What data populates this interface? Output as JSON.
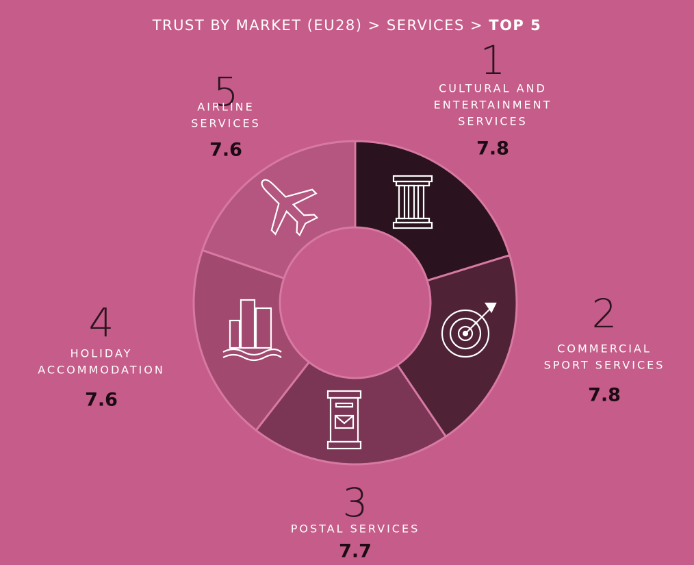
{
  "chart_data": {
    "type": "donut",
    "title": "TRUST BY MARKET (EU28) > SERVICES >",
    "title_emphasis": "TOP 5",
    "ranks": [
      1,
      2,
      3,
      4,
      5
    ],
    "categories": [
      [
        "CULTURAL AND",
        "ENTERTAINMENT",
        "SERVICES"
      ],
      [
        "COMMERCIAL",
        "SPORT SERVICES"
      ],
      [
        "POSTAL SERVICES"
      ],
      [
        "HOLIDAY",
        "ACCOMMODATION"
      ],
      [
        "AIRLINE",
        "SERVICES"
      ]
    ],
    "values": [
      7.8,
      7.8,
      7.7,
      7.6,
      7.6
    ],
    "colors": [
      "#2a131e",
      "#4f2236",
      "#7b3555",
      "#a1496f",
      "#b4567f"
    ]
  }
}
